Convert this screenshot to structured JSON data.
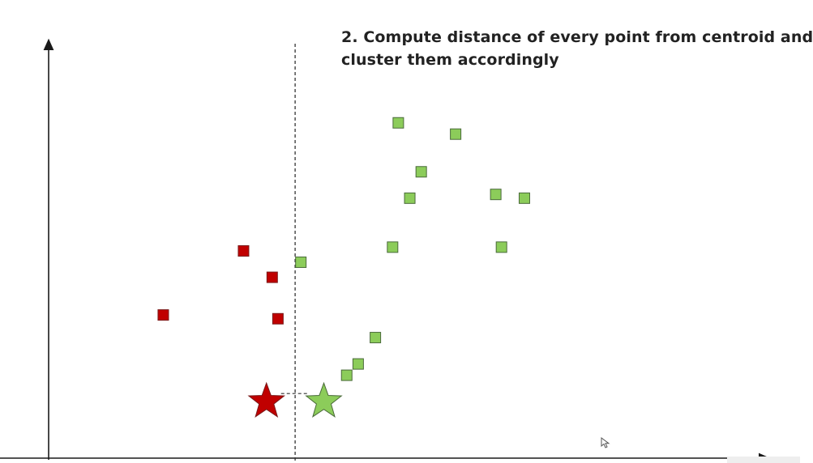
{
  "title": {
    "line1": "2. Compute distance of every point from centroid and",
    "line2": "cluster them accordingly"
  },
  "colors": {
    "axis": "#1a1a1a",
    "red_cluster": "#c00000",
    "red_stroke": "#7a1a1a",
    "green_cluster": "#8ccc5a",
    "green_stroke": "#4a6a3a",
    "divider": "#333333"
  },
  "icons": {
    "cursor": "mouse-pointer-icon"
  },
  "chart_data": {
    "type": "scatter",
    "grid": false,
    "legend": "none",
    "series": [
      {
        "cluster": "red",
        "marker": "square",
        "points": [
          [
            2.0,
            3.8
          ],
          [
            3.4,
            5.5
          ],
          [
            3.9,
            4.8
          ],
          [
            4.0,
            3.7
          ]
        ]
      },
      {
        "cluster": "green",
        "marker": "square",
        "points": [
          [
            4.4,
            5.2
          ],
          [
            6.1,
            8.9
          ],
          [
            6.5,
            7.6
          ],
          [
            7.1,
            8.6
          ],
          [
            6.3,
            6.9
          ],
          [
            6.0,
            5.6
          ],
          [
            7.8,
            7.0
          ],
          [
            8.3,
            6.9
          ],
          [
            7.9,
            5.6
          ],
          [
            5.7,
            3.2
          ],
          [
            5.4,
            2.5
          ],
          [
            5.2,
            2.2
          ]
        ]
      }
    ],
    "centroids": [
      {
        "cluster": "red",
        "marker": "star",
        "x": 3.8,
        "y": 1.5
      },
      {
        "cluster": "green",
        "marker": "star",
        "x": 4.8,
        "y": 1.5
      }
    ],
    "divider_x": 4.3,
    "xlim": [
      0,
      12.5
    ],
    "ylim": [
      0,
      11
    ]
  }
}
